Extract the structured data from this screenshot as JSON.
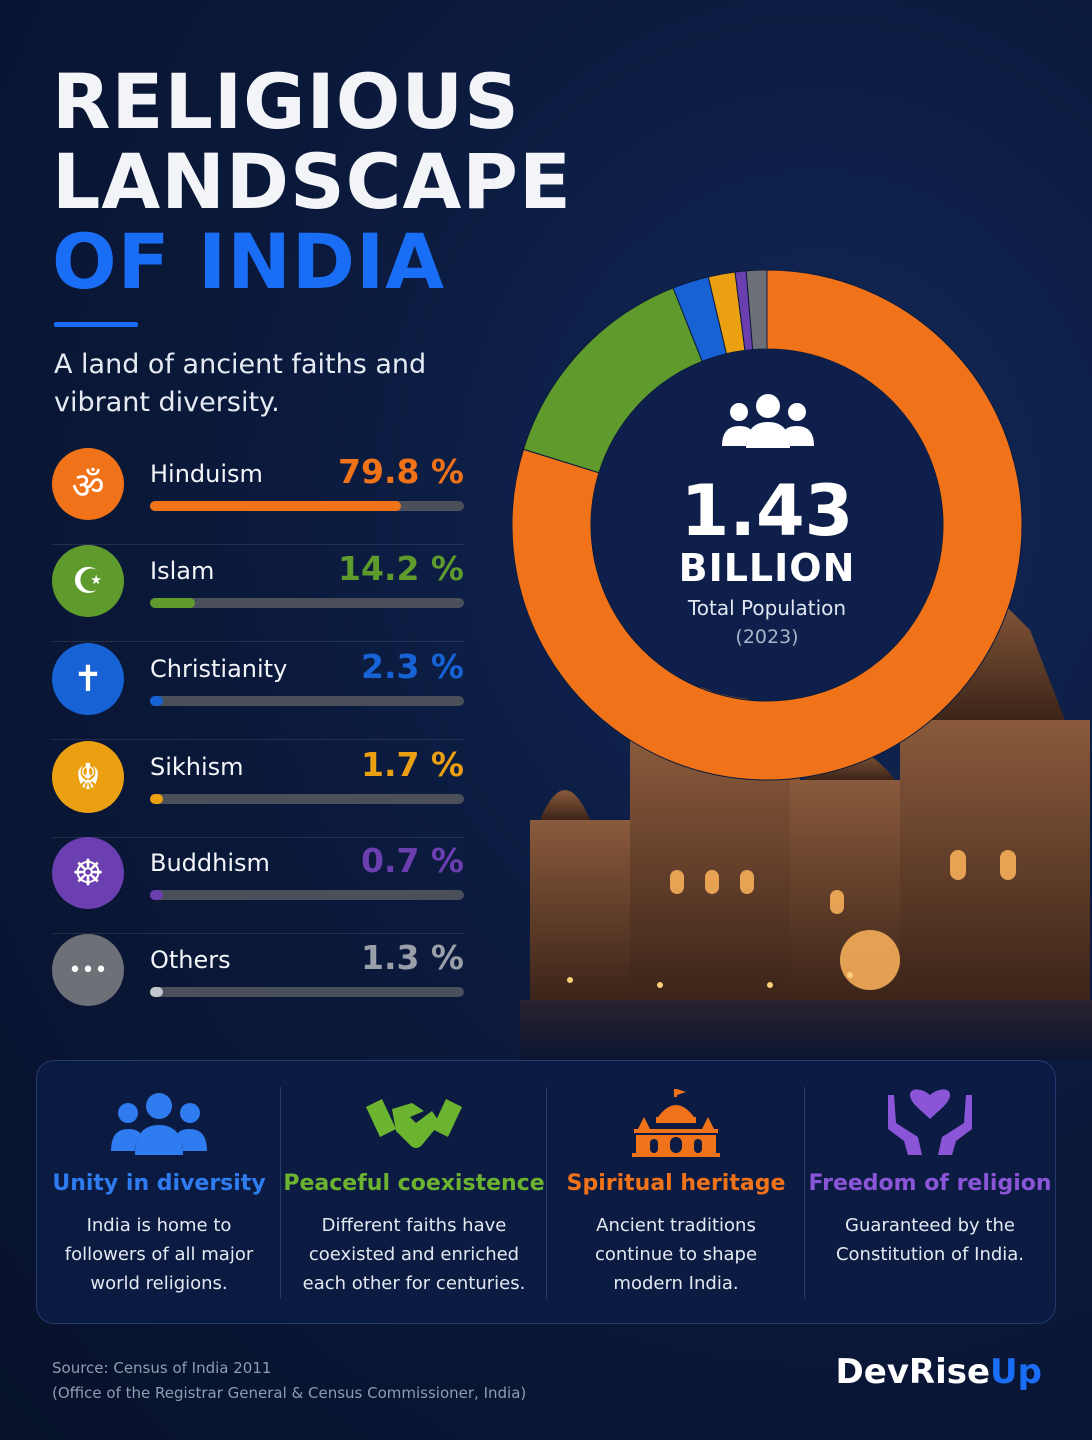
{
  "header": {
    "title_line1": "RELIGIOUS",
    "title_line2": "LANDSCAPE",
    "title_line3": "OF INDIA",
    "subtitle": "A land of ancient faiths and vibrant diversity."
  },
  "chart_data": {
    "type": "pie",
    "categories": [
      "Hinduism",
      "Islam",
      "Christianity",
      "Sikhism",
      "Buddhism",
      "Others"
    ],
    "values": [
      79.8,
      14.2,
      2.3,
      1.7,
      0.7,
      1.3
    ],
    "value_labels": [
      "79.8 %",
      "14.2 %",
      "2.3 %",
      "1.7 %",
      "0.7 %",
      "1.3 %"
    ],
    "unit": "%",
    "colors": [
      "#f07319",
      "#5f9a2d",
      "#1763d6",
      "#eaa010",
      "#6b3fb0",
      "#6e7078"
    ],
    "icons": [
      "om-icon",
      "crescent-star-icon",
      "cross-icon",
      "khanda-icon",
      "dharma-wheel-icon",
      "ellipsis-icon"
    ],
    "donut": true,
    "center": {
      "value": "1.43",
      "unit": "BILLION",
      "label": "Total Population",
      "year": "(2023)"
    }
  },
  "features": [
    {
      "title": "Unity in diversity",
      "text": "India is home to followers of all major world religions.",
      "color": "#2f7bf0",
      "icon": "people-group-icon"
    },
    {
      "title": "Peaceful coexistence",
      "text": "Different faiths have coexisted and enriched each other for centuries.",
      "color": "#6cb330",
      "icon": "handshake-icon"
    },
    {
      "title": "Spiritual heritage",
      "text": "Ancient traditions continue to shape modern India.",
      "color": "#f07319",
      "icon": "temple-icon"
    },
    {
      "title": "Freedom of religion",
      "text": "Guaranteed by the Constitution of India.",
      "color": "#8a55d6",
      "icon": "hands-heart-icon"
    }
  ],
  "footer": {
    "source_line1": "Source: Census of India 2011",
    "source_line2": "(Office of the Registrar General & Census Commissioner, India)",
    "brand_main": "DevRise",
    "brand_accent": "Up"
  }
}
